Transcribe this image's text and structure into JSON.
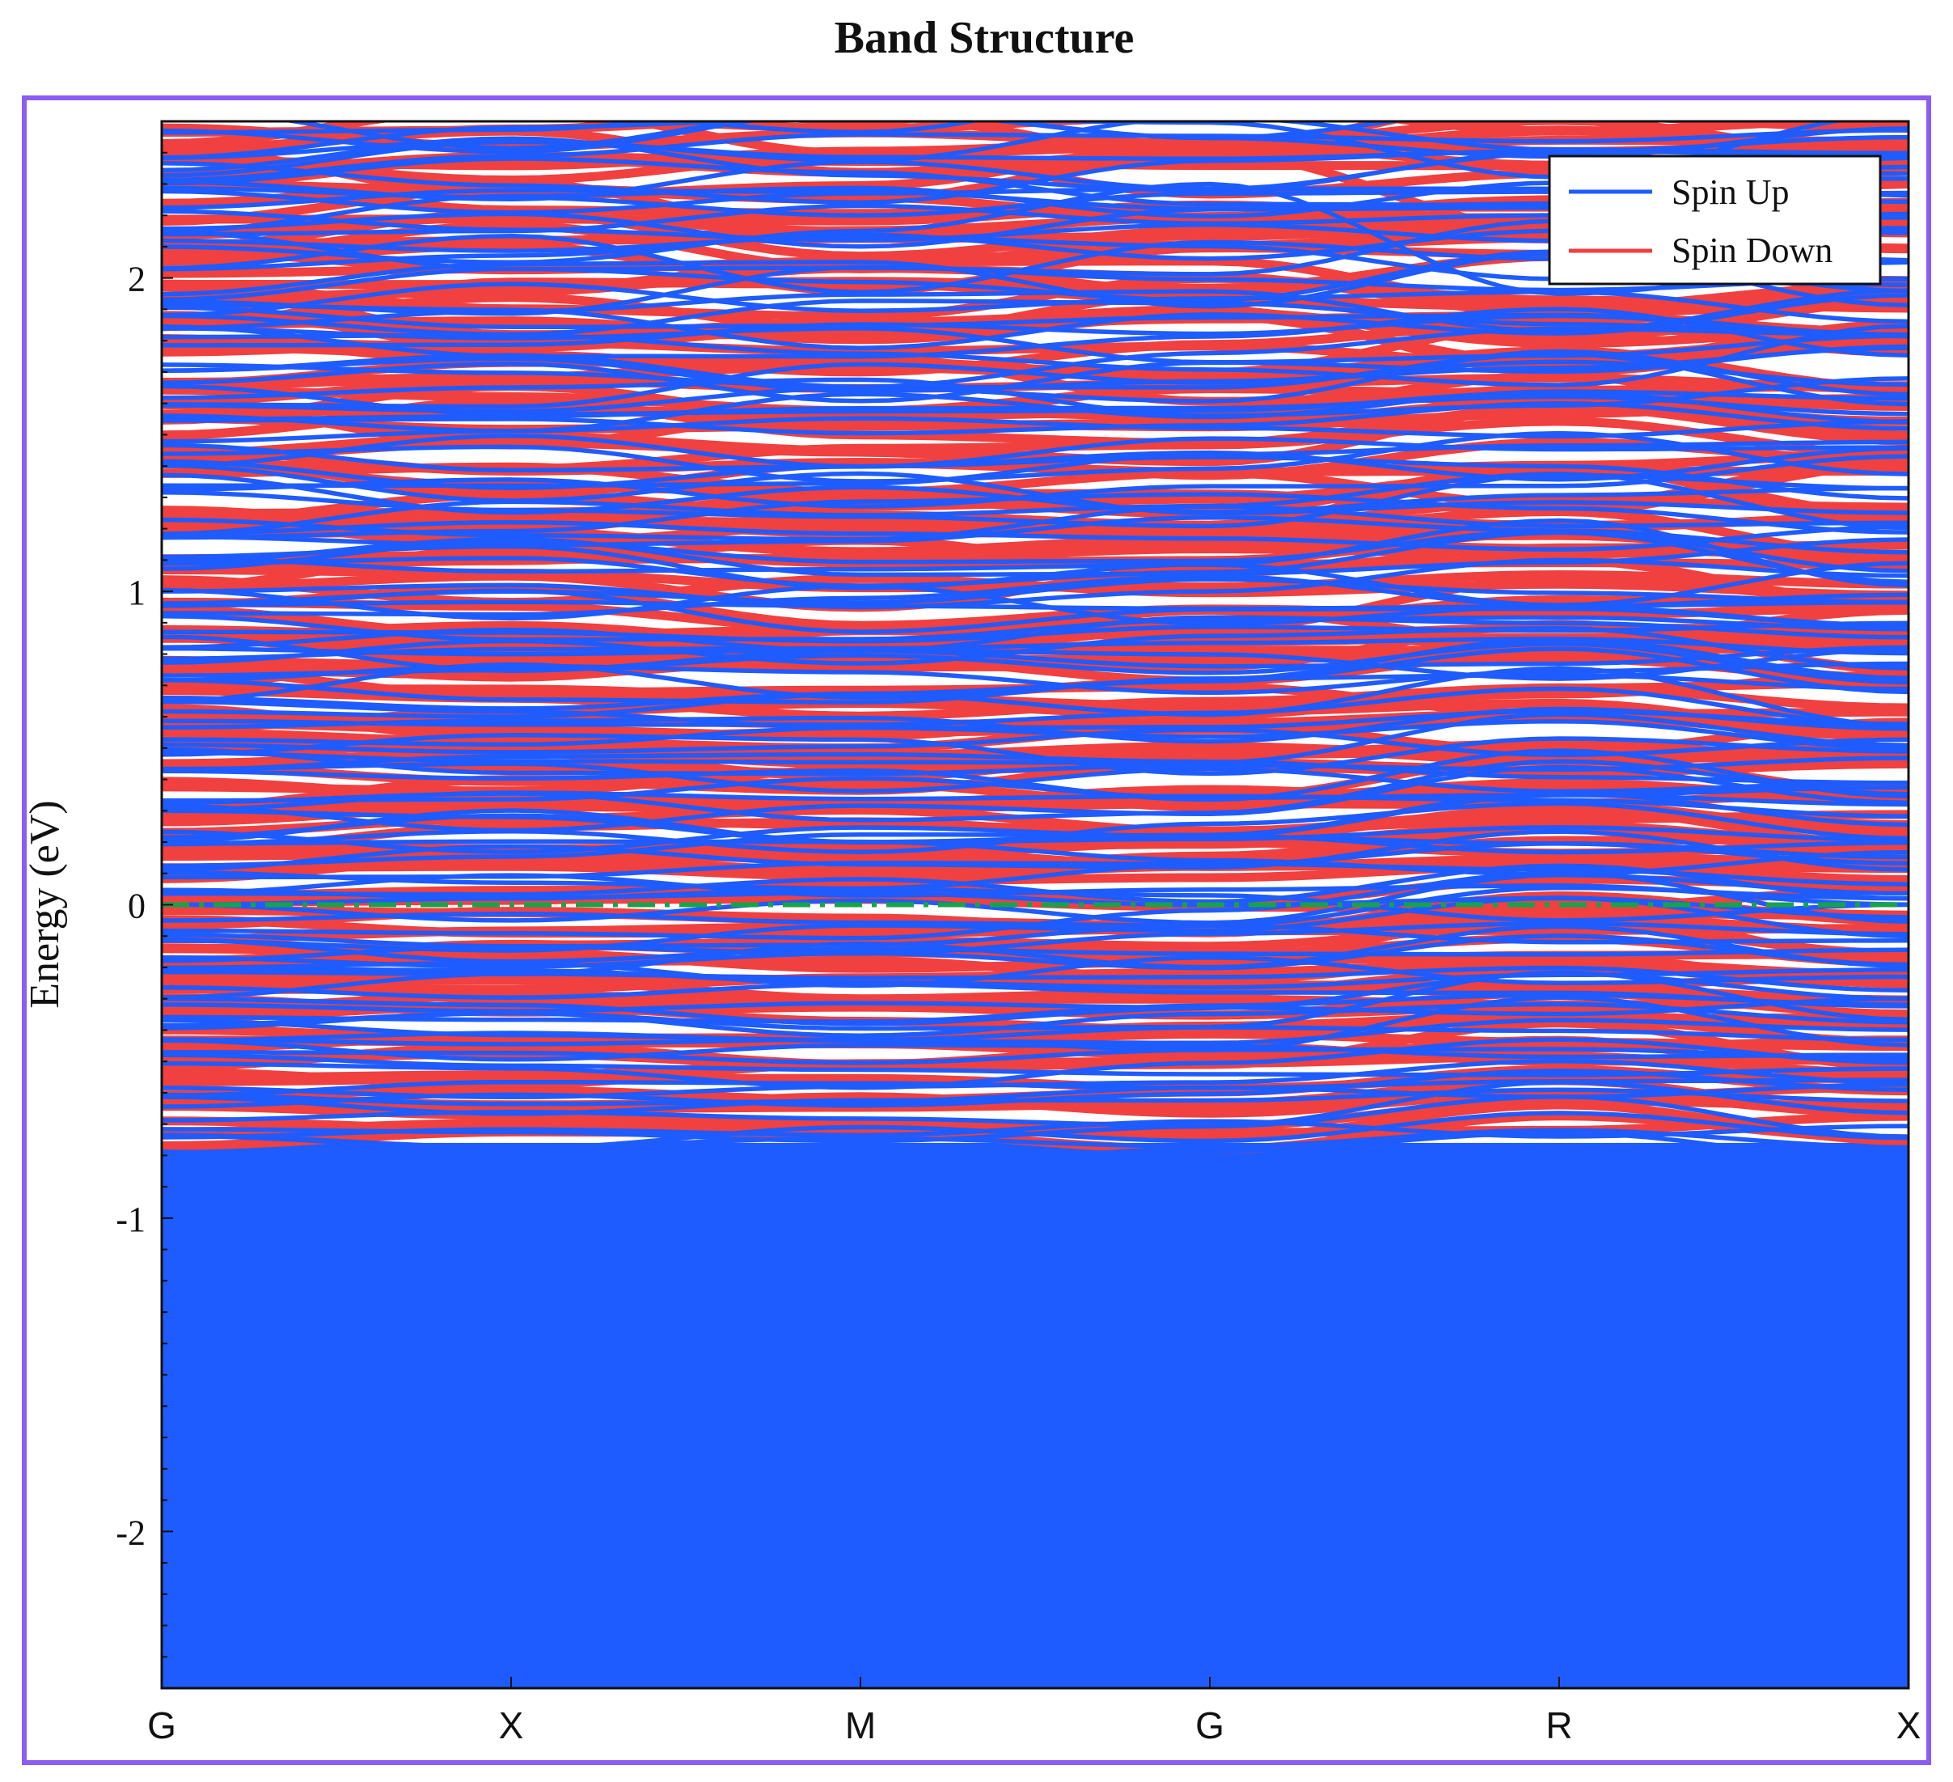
{
  "chart_data": {
    "type": "line",
    "title": "Band Structure",
    "xlabel": "",
    "ylabel": "Energy (eV)",
    "ylim": [
      -2.5,
      2.5
    ],
    "yticks": [
      -2,
      -1,
      0,
      1,
      2
    ],
    "kpoints": [
      "G",
      "X",
      "M",
      "G",
      "R",
      "X"
    ],
    "fermi_level": 0,
    "legend": {
      "position": "top-right"
    },
    "grid": false,
    "series": [
      {
        "name": "Spin Up",
        "color": "#1f5cff",
        "band_count": 150,
        "bands_example": [
          [
            -0.79,
            -0.8,
            -0.79,
            -0.8,
            -0.78,
            -0.79
          ],
          [
            -0.3,
            -0.32,
            -0.38,
            -0.33,
            -0.22,
            -0.3
          ],
          [
            0.0,
            0.02,
            0.05,
            0.03,
            -0.05,
            0.0
          ],
          [
            0.3,
            0.28,
            0.2,
            0.22,
            0.35,
            0.32
          ],
          [
            1.0,
            1.02,
            0.95,
            1.0,
            1.1,
            1.05
          ],
          [
            2.1,
            2.05,
            2.15,
            2.3,
            1.95,
            2.05
          ]
        ]
      },
      {
        "name": "Spin Down",
        "color": "#f04040",
        "band_count": 150,
        "bands_example": [
          [
            -0.25,
            -0.24,
            -0.3,
            -0.28,
            -0.2,
            -0.25
          ],
          [
            0.55,
            0.52,
            0.5,
            0.58,
            0.48,
            0.5
          ],
          [
            0.85,
            0.83,
            0.8,
            0.88,
            0.82,
            0.86
          ],
          [
            1.8,
            1.78,
            1.85,
            1.9,
            1.7,
            1.8
          ],
          [
            2.3,
            2.28,
            2.25,
            2.4,
            2.15,
            2.3
          ]
        ]
      }
    ]
  }
}
